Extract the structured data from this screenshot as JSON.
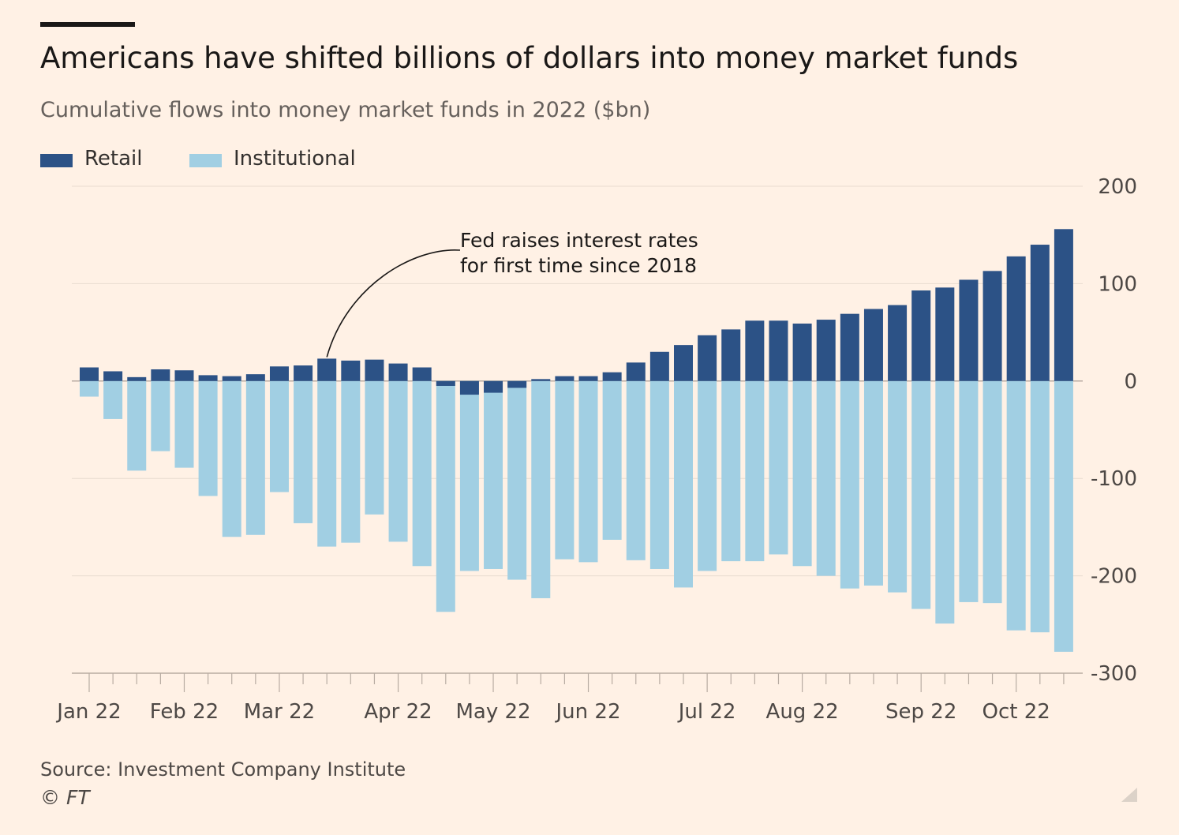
{
  "title": "Americans have shifted billions of dollars into money market funds",
  "subtitle": "Cumulative flows into money market funds in 2022 ($bn)",
  "source": "Source: Investment Company Institute",
  "copyright": "© FT",
  "colors": {
    "background": "#fff1e5",
    "retail": "#2c5286",
    "institutional": "#a1cfe3",
    "gridline": "#e8dcd0",
    "axis": "#66605c"
  },
  "chart_data": {
    "type": "bar",
    "stacked": true,
    "title": "Americans have shifted billions of dollars into money market funds",
    "subtitle": "Cumulative flows into money market funds in 2022 ($bn)",
    "legend_position": "top-left",
    "legend": [
      "Retail",
      "Institutional"
    ],
    "y_axis_position": "right",
    "ylim": [
      -300,
      200
    ],
    "yticks": [
      200,
      100,
      0,
      -100,
      -200,
      -300
    ],
    "ytick_labels": [
      "200",
      "100",
      "0",
      "-100",
      "-200",
      "-300"
    ],
    "grid": true,
    "month_labels": [
      "Jan 22",
      "Feb 22",
      "Mar 22",
      "Apr 22",
      "May 22",
      "Jun 22",
      "Jul 22",
      "Aug 22",
      "Sep 22",
      "Oct 22"
    ],
    "month_label_week_index": [
      0,
      4,
      8,
      13,
      17,
      21,
      26,
      30,
      35,
      39
    ],
    "week_count": 42,
    "series": [
      {
        "name": "Retail",
        "color": "#2c5286",
        "values": [
          14,
          10,
          4,
          12,
          11,
          6,
          5,
          7,
          15,
          16,
          23,
          21,
          22,
          18,
          14,
          -5,
          -14,
          -12,
          -7,
          2,
          5,
          5,
          9,
          19,
          30,
          37,
          47,
          53,
          62,
          62,
          59,
          63,
          69,
          74,
          78,
          93,
          96,
          104,
          113,
          128,
          140,
          156
        ]
      },
      {
        "name": "Institutional",
        "color": "#a1cfe3",
        "values": [
          -16,
          -39,
          -92,
          -72,
          -89,
          -118,
          -160,
          -158,
          -114,
          -146,
          -170,
          -166,
          -137,
          -165,
          -190,
          -237,
          -195,
          -193,
          -204,
          -223,
          -183,
          -186,
          -163,
          -184,
          -193,
          -212,
          -195,
          -185,
          -185,
          -178,
          -190,
          -200,
          -213,
          -210,
          -217,
          -234,
          -249,
          -227,
          -228,
          -256,
          -258,
          -278
        ]
      }
    ],
    "annotation": {
      "lines": [
        "Fed raises interest rates",
        "for first time since 2018"
      ],
      "week_index": 10
    }
  }
}
